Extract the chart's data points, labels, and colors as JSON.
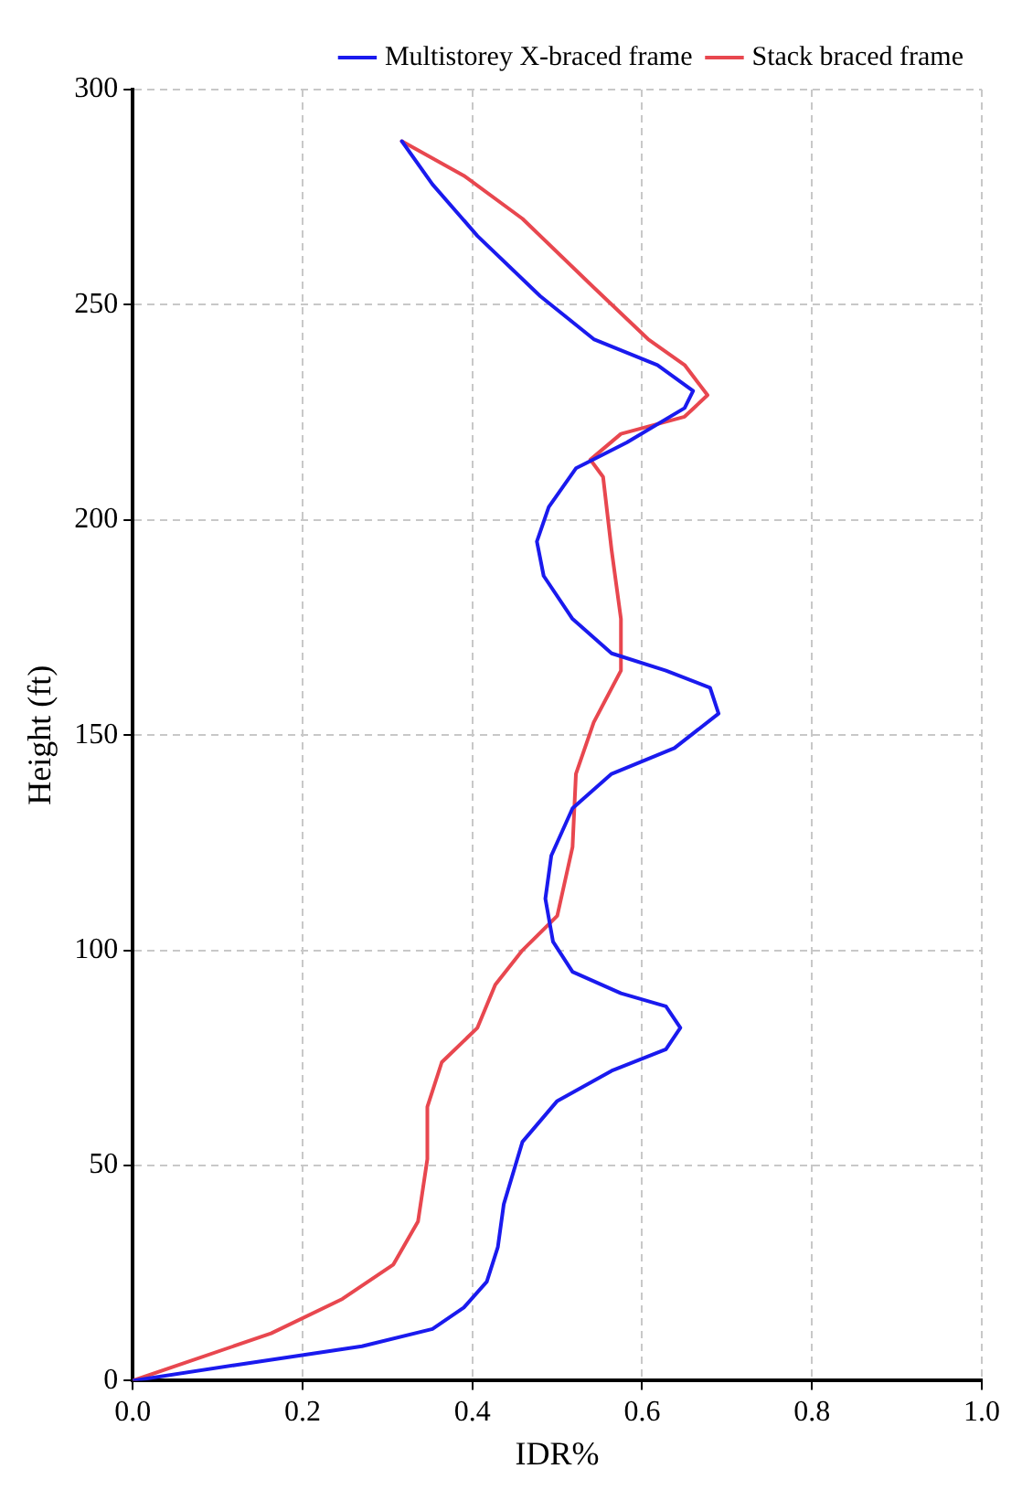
{
  "chart_data": {
    "type": "line",
    "xlabel": "IDR%",
    "ylabel": "Height (ft)",
    "xlim": [
      0,
      1
    ],
    "ylim": [
      0,
      300
    ],
    "xticks": [
      {
        "value": 0,
        "label": "0.0"
      },
      {
        "value": 0.2,
        "label": "0.2"
      },
      {
        "value": 0.4,
        "label": "0.4"
      },
      {
        "value": 0.6,
        "label": "0.6"
      },
      {
        "value": 0.8,
        "label": "0.8"
      },
      {
        "value": 1,
        "label": "1.0"
      }
    ],
    "yticks": [
      0,
      50,
      100,
      150,
      200,
      250,
      300
    ],
    "grid": true,
    "legend": "top right",
    "marker": "none",
    "series": [
      {
        "name": "Multistorey X-braced frame",
        "color": "#1a1aee",
        "x": [
          0,
          0.12,
          0.27,
          0.353,
          0.39,
          0.417,
          0.43,
          0.437,
          0.459,
          0.5,
          0.564,
          0.628,
          0.645,
          0.628,
          0.575,
          0.518,
          0.495,
          0.486,
          0.493,
          0.518,
          0.564,
          0.638,
          0.69,
          0.68,
          0.628,
          0.564,
          0.518,
          0.484,
          0.476,
          0.49,
          0.522,
          0.582,
          0.65,
          0.66,
          0.618,
          0.543,
          0.48,
          0.406,
          0.353,
          0.317
        ],
        "values": [
          0,
          3.6,
          8,
          12,
          17,
          23,
          31,
          41,
          55.5,
          65,
          72,
          77,
          82,
          87,
          90,
          95,
          102,
          112,
          122,
          133,
          141,
          147,
          155,
          161,
          165,
          169,
          177,
          187,
          195,
          203,
          212,
          218,
          226,
          230,
          236,
          242,
          252,
          266,
          278,
          288
        ]
      },
      {
        "name": "Stack braced frame",
        "color": "#e8474f",
        "x": [
          0,
          0.163,
          0.247,
          0.307,
          0.336,
          0.347,
          0.347,
          0.364,
          0.406,
          0.427,
          0.459,
          0.5,
          0.518,
          0.522,
          0.543,
          0.575,
          0.575,
          0.564,
          0.554,
          0.539,
          0.575,
          0.65,
          0.677,
          0.65,
          0.607,
          0.543,
          0.459,
          0.39,
          0.317
        ],
        "values": [
          0,
          11,
          19,
          27,
          37,
          51.5,
          63.6,
          74,
          82,
          92,
          100,
          108,
          124,
          141,
          153,
          165,
          177,
          193,
          210,
          214,
          220,
          224,
          229,
          236,
          242,
          254,
          270,
          280,
          288
        ]
      }
    ]
  }
}
